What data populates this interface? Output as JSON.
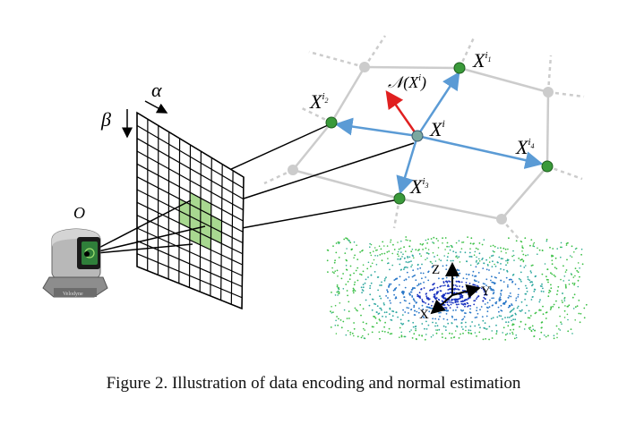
{
  "figure": {
    "caption": "Figure 2. Illustration of data encoding and normal estimation",
    "labels": {
      "alpha": "α",
      "beta": "β",
      "origin": "O",
      "Xi": "X",
      "Xi_sup": "i",
      "Xi1": "X",
      "Xi1_sup": "i",
      "Xi1_sub": "1",
      "Xi2": "X",
      "Xi2_sup": "i",
      "Xi2_sub": "2",
      "Xi3": "X",
      "Xi3_sup": "i",
      "Xi3_sub": "3",
      "Xi4": "X",
      "Xi4_sup": "i",
      "Xi4_sub": "4",
      "normal": "𝒩(X",
      "normal_sup": "i",
      "normal_close": ")",
      "axis_z": "Z",
      "axis_y": "Y",
      "axis_x": "X",
      "sensor_brand": "Velodyne"
    },
    "colors": {
      "node_green": "#3a9a3a",
      "grid_green": "#a8d890",
      "arrow_blue": "#5b9bd5",
      "arrow_red": "#e02020",
      "mesh_gray": "#cccccc",
      "cloud_blue": "#1a3fbf",
      "cloud_green": "#39c04a"
    }
  }
}
